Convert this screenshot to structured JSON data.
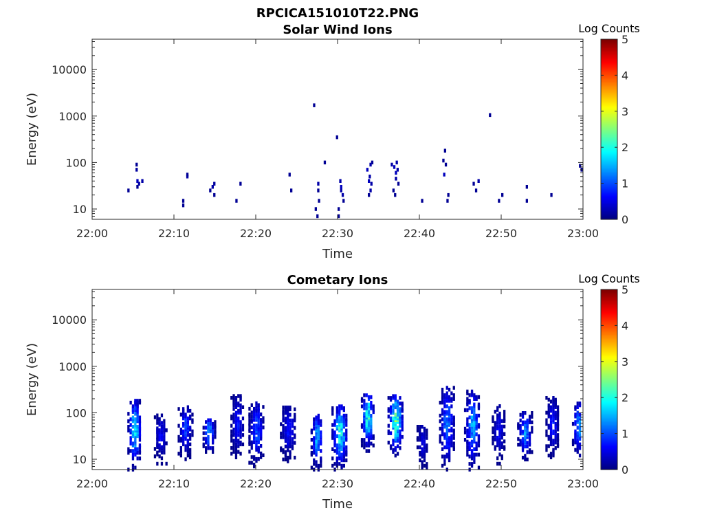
{
  "figure": {
    "title": "RPCICA151010T22.PNG",
    "background": "#ffffff"
  },
  "chart_data": [
    {
      "type": "heatmap",
      "title": "Solar Wind Ions",
      "xlabel": "Time",
      "ylabel": "Energy (eV)",
      "x_ticks": [
        "22:00",
        "22:10",
        "22:20",
        "22:30",
        "22:40",
        "22:50",
        "23:00"
      ],
      "xlim_minutes": [
        0,
        60
      ],
      "y_scale": "log",
      "y_ticks": [
        "10",
        "100",
        "1000",
        "10000"
      ],
      "ylim": [
        6,
        45000
      ],
      "colorbar": {
        "label": "Log Counts",
        "ticks": [
          "0",
          "1",
          "2",
          "3",
          "4",
          "5"
        ],
        "range": [
          0,
          5
        ],
        "colormap": "jet"
      },
      "cells": [
        [
          4.3,
          25,
          0.1
        ],
        [
          5.3,
          90,
          0.1
        ],
        [
          5.3,
          70,
          0.15
        ],
        [
          5.4,
          40,
          0.3
        ],
        [
          5.6,
          35,
          0.2
        ],
        [
          5.4,
          30,
          0.1
        ],
        [
          6.0,
          40,
          0.2
        ],
        [
          11.0,
          15,
          0.1
        ],
        [
          11.0,
          12,
          0.1
        ],
        [
          11.5,
          50,
          0.2
        ],
        [
          11.5,
          55,
          0.1
        ],
        [
          14.3,
          25,
          0.1
        ],
        [
          14.6,
          30,
          0.2
        ],
        [
          14.8,
          35,
          0.15
        ],
        [
          14.8,
          20,
          0.1
        ],
        [
          17.5,
          15,
          0.1
        ],
        [
          18.0,
          35,
          0.1
        ],
        [
          24.0,
          55,
          0.1
        ],
        [
          24.2,
          25,
          0.1
        ],
        [
          27.0,
          1700,
          0.1
        ],
        [
          27.2,
          10,
          0.1
        ],
        [
          27.4,
          7,
          0.1
        ],
        [
          27.5,
          35,
          0.2
        ],
        [
          27.5,
          25,
          0.1
        ],
        [
          27.6,
          15,
          0.1
        ],
        [
          28.3,
          100,
          0.1
        ],
        [
          29.8,
          350,
          0.1
        ],
        [
          30.0,
          10,
          0.1
        ],
        [
          30.0,
          7,
          0.1
        ],
        [
          30.2,
          40,
          0.2
        ],
        [
          30.3,
          30,
          0.3
        ],
        [
          30.3,
          25,
          0.2
        ],
        [
          30.5,
          20,
          0.2
        ],
        [
          30.6,
          15,
          0.1
        ],
        [
          33.5,
          70,
          0.3
        ],
        [
          33.8,
          50,
          0.2
        ],
        [
          33.7,
          40,
          0.3
        ],
        [
          34.0,
          35,
          0.2
        ],
        [
          33.9,
          25,
          0.2
        ],
        [
          33.7,
          20,
          0.1
        ],
        [
          34.1,
          100,
          0.1
        ],
        [
          33.9,
          90,
          0.2
        ],
        [
          36.5,
          90,
          0.2
        ],
        [
          36.8,
          80,
          0.3
        ],
        [
          37.0,
          60,
          0.3
        ],
        [
          37.2,
          70,
          0.2
        ],
        [
          37.0,
          45,
          0.2
        ],
        [
          37.3,
          35,
          0.1
        ],
        [
          36.7,
          25,
          0.1
        ],
        [
          36.9,
          20,
          0.1
        ],
        [
          37.1,
          100,
          0.2
        ],
        [
          40.2,
          15,
          0.1
        ],
        [
          42.8,
          110,
          0.1
        ],
        [
          43.0,
          180,
          0.1
        ],
        [
          43.1,
          90,
          0.1
        ],
        [
          42.9,
          55,
          0.3
        ],
        [
          43.4,
          20,
          0.1
        ],
        [
          43.3,
          15,
          0.1
        ],
        [
          46.5,
          35,
          0.1
        ],
        [
          46.8,
          25,
          0.1
        ],
        [
          47.1,
          40,
          0.2
        ],
        [
          48.5,
          1050,
          0.1
        ],
        [
          49.6,
          15,
          0.1
        ],
        [
          50.0,
          20,
          0.1
        ],
        [
          53.0,
          30,
          0.1
        ],
        [
          53.0,
          15,
          0.1
        ],
        [
          56.0,
          20,
          0.1
        ],
        [
          59.5,
          85,
          0.1
        ],
        [
          59.7,
          70,
          0.1
        ],
        [
          59.8,
          45,
          0.1
        ],
        [
          59.9,
          25,
          0.2
        ]
      ]
    },
    {
      "type": "heatmap",
      "title": "Cometary Ions",
      "xlabel": "Time",
      "ylabel": "Energy (eV)",
      "x_ticks": [
        "22:00",
        "22:10",
        "22:20",
        "22:30",
        "22:40",
        "22:50",
        "23:00"
      ],
      "xlim_minutes": [
        0,
        60
      ],
      "y_scale": "log",
      "y_ticks": [
        "10",
        "100",
        "1000",
        "10000"
      ],
      "ylim": [
        6,
        45000
      ],
      "colorbar": {
        "label": "Log Counts",
        "ticks": [
          "0",
          "1",
          "2",
          "3",
          "4",
          "5"
        ],
        "range": [
          0,
          5
        ],
        "colormap": "jet"
      },
      "bursts": [
        {
          "t": 5.1,
          "w": 1.6,
          "lo": 6,
          "hi": 190,
          "peak": 1.8
        },
        {
          "t": 8.3,
          "w": 1.5,
          "lo": 8,
          "hi": 90,
          "peak": 0.6
        },
        {
          "t": 11.3,
          "w": 1.7,
          "lo": 10,
          "hi": 140,
          "peak": 0.9
        },
        {
          "t": 14.2,
          "w": 1.4,
          "lo": 12,
          "hi": 75,
          "peak": 1.5
        },
        {
          "t": 17.7,
          "w": 1.6,
          "lo": 10,
          "hi": 240,
          "peak": 0.7
        },
        {
          "t": 20.0,
          "w": 1.8,
          "lo": 7,
          "hi": 170,
          "peak": 1.0
        },
        {
          "t": 23.9,
          "w": 1.9,
          "lo": 9,
          "hi": 140,
          "peak": 0.7
        },
        {
          "t": 27.4,
          "w": 1.4,
          "lo": 6,
          "hi": 90,
          "peak": 1.6
        },
        {
          "t": 30.2,
          "w": 1.9,
          "lo": 6,
          "hi": 140,
          "peak": 2.0
        },
        {
          "t": 33.6,
          "w": 1.5,
          "lo": 15,
          "hi": 280,
          "peak": 2.1
        },
        {
          "t": 37.0,
          "w": 1.8,
          "lo": 12,
          "hi": 250,
          "peak": 2.3
        },
        {
          "t": 40.3,
          "w": 1.3,
          "lo": 6,
          "hi": 60,
          "peak": 0.5
        },
        {
          "t": 43.3,
          "w": 1.8,
          "lo": 6,
          "hi": 380,
          "peak": 1.2
        },
        {
          "t": 46.4,
          "w": 1.9,
          "lo": 6,
          "hi": 310,
          "peak": 1.4
        },
        {
          "t": 49.6,
          "w": 1.5,
          "lo": 8,
          "hi": 140,
          "peak": 0.6
        },
        {
          "t": 52.8,
          "w": 1.7,
          "lo": 9,
          "hi": 100,
          "peak": 1.2
        },
        {
          "t": 56.2,
          "w": 1.6,
          "lo": 10,
          "hi": 220,
          "peak": 0.7
        },
        {
          "t": 59.4,
          "w": 1.5,
          "lo": 10,
          "hi": 160,
          "peak": 1.4
        }
      ]
    }
  ]
}
